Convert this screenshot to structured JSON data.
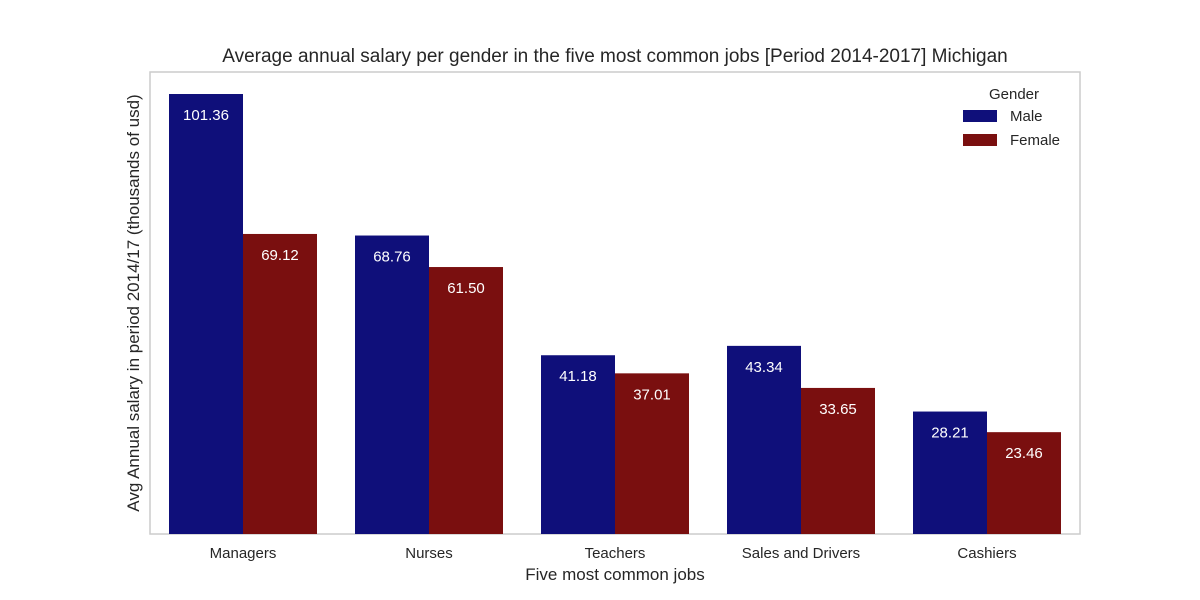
{
  "chart_data": {
    "type": "bar",
    "title": "Average annual salary per gender in the five most common jobs [Period 2014-2017] Michigan",
    "xlabel": "Five most common jobs",
    "ylabel": "Avg Annual salary in period 2014/17 (thousands of usd)",
    "categories": [
      "Managers",
      "Nurses",
      "Teachers",
      "Sales and Drivers",
      "Cashiers"
    ],
    "series": [
      {
        "name": "Male",
        "color": "#0f0f7a",
        "values": [
          101.36,
          68.76,
          41.18,
          43.34,
          28.21
        ],
        "labels": [
          "101.36",
          "68.76",
          "41.18",
          "43.34",
          "28.21"
        ]
      },
      {
        "name": "Female",
        "color": "#7a0f0f",
        "values": [
          69.12,
          61.5,
          37.01,
          33.65,
          23.46
        ],
        "labels": [
          "69.12",
          "61.50",
          "37.01",
          "33.65",
          "23.46"
        ]
      }
    ],
    "ylim": [
      0,
      106.43
    ],
    "grid": false,
    "y_ticks_shown": false,
    "legend": {
      "title": "Gender",
      "placement": "top-right"
    }
  }
}
